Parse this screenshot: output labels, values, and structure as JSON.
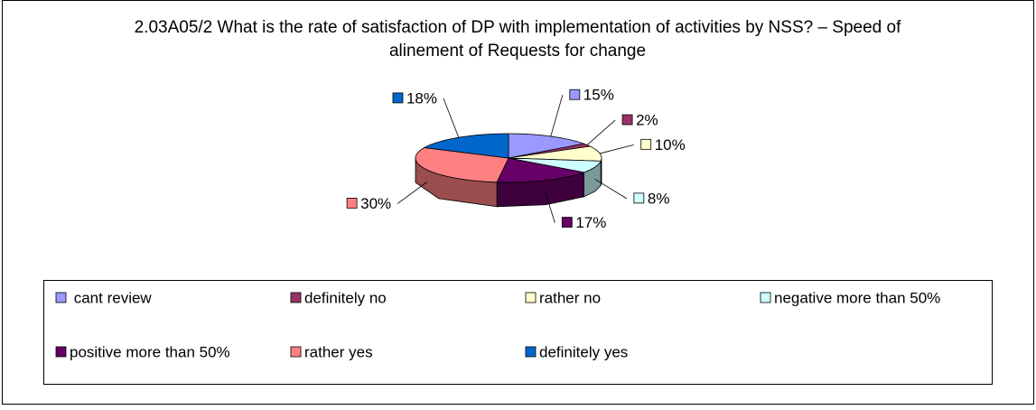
{
  "chart_data": {
    "type": "pie3d",
    "title": "2.03A05/2 What is the rate of satisfaction of DP with implementation of activities by NSS? – Speed of alinement of Requests for change",
    "series": [
      {
        "name": " cant review",
        "color": "#9999FF",
        "values": [
          15
        ],
        "value_labels": [
          "15%"
        ]
      },
      {
        "name": "definitely no",
        "color": "#993366",
        "values": [
          2
        ],
        "value_labels": [
          "2%"
        ]
      },
      {
        "name": "rather no",
        "color": "#FFFFCC",
        "values": [
          10
        ],
        "value_labels": [
          "10%"
        ]
      },
      {
        "name": "negative more than 50%",
        "color": "#CCFFFF",
        "values": [
          8
        ],
        "value_labels": [
          "8%"
        ]
      },
      {
        "name": "positive more than 50%",
        "color": "#660066",
        "values": [
          17
        ],
        "value_labels": [
          "17%"
        ]
      },
      {
        "name": "rather yes",
        "color": "#FF8080",
        "values": [
          30
        ],
        "value_labels": [
          "30%"
        ]
      },
      {
        "name": "definitely yes",
        "color": "#0066CC",
        "values": [
          18
        ],
        "value_labels": [
          "18%"
        ]
      }
    ],
    "legend": "bottom"
  }
}
